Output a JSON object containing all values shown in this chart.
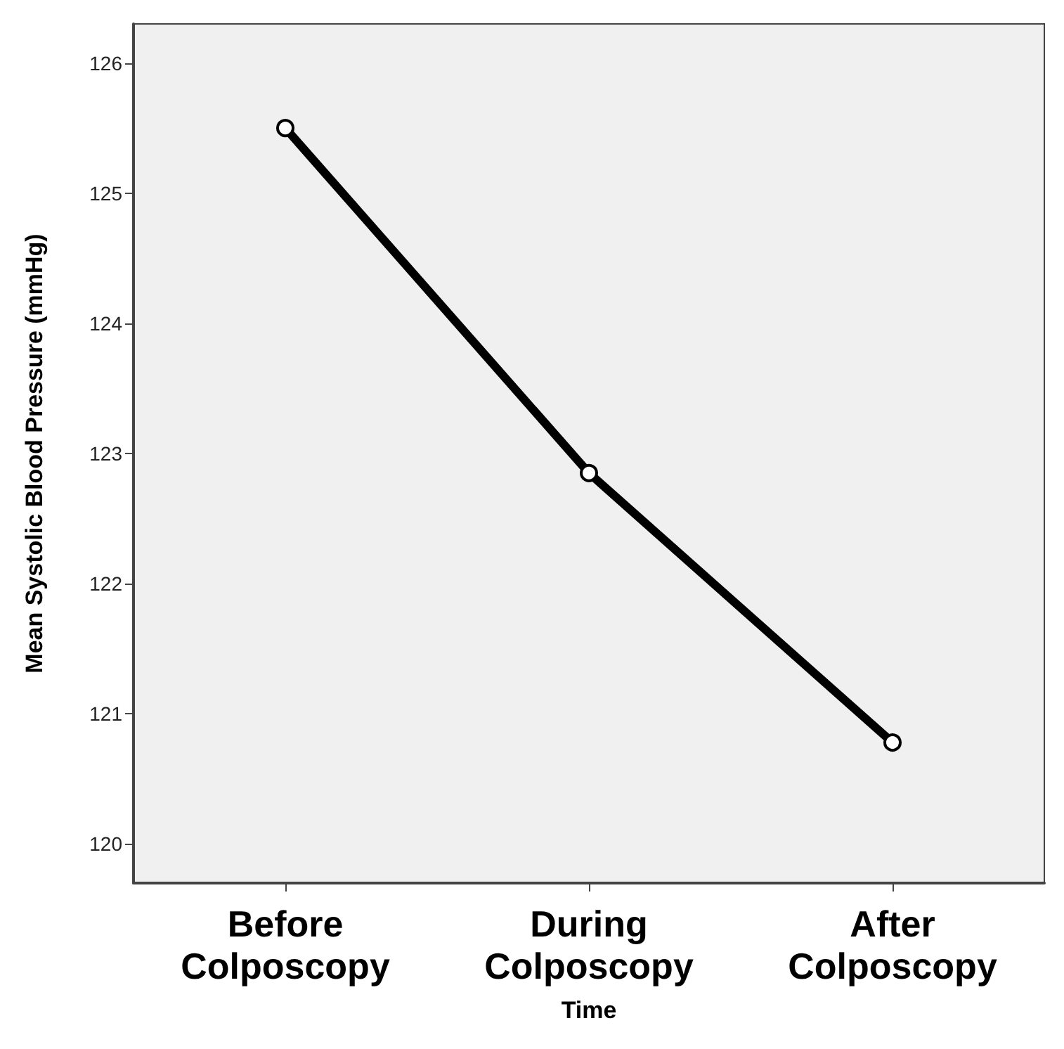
{
  "chart_data": {
    "type": "line",
    "xlabel": "Time",
    "ylabel": "Mean Systolic Blood Pressure (mmHg)",
    "categories": [
      "Before\nColposcopy",
      "During\nColposcopy",
      "After\nColposcopy"
    ],
    "series": [
      {
        "color": "#000000",
        "values": [
          125.5,
          122.85,
          120.78
        ]
      }
    ],
    "ylim": [
      119.7,
      126.3
    ],
    "yticks": [
      120,
      121,
      122,
      123,
      124,
      125,
      126
    ],
    "grid": false,
    "marker": "circle",
    "line_style": "solid"
  }
}
